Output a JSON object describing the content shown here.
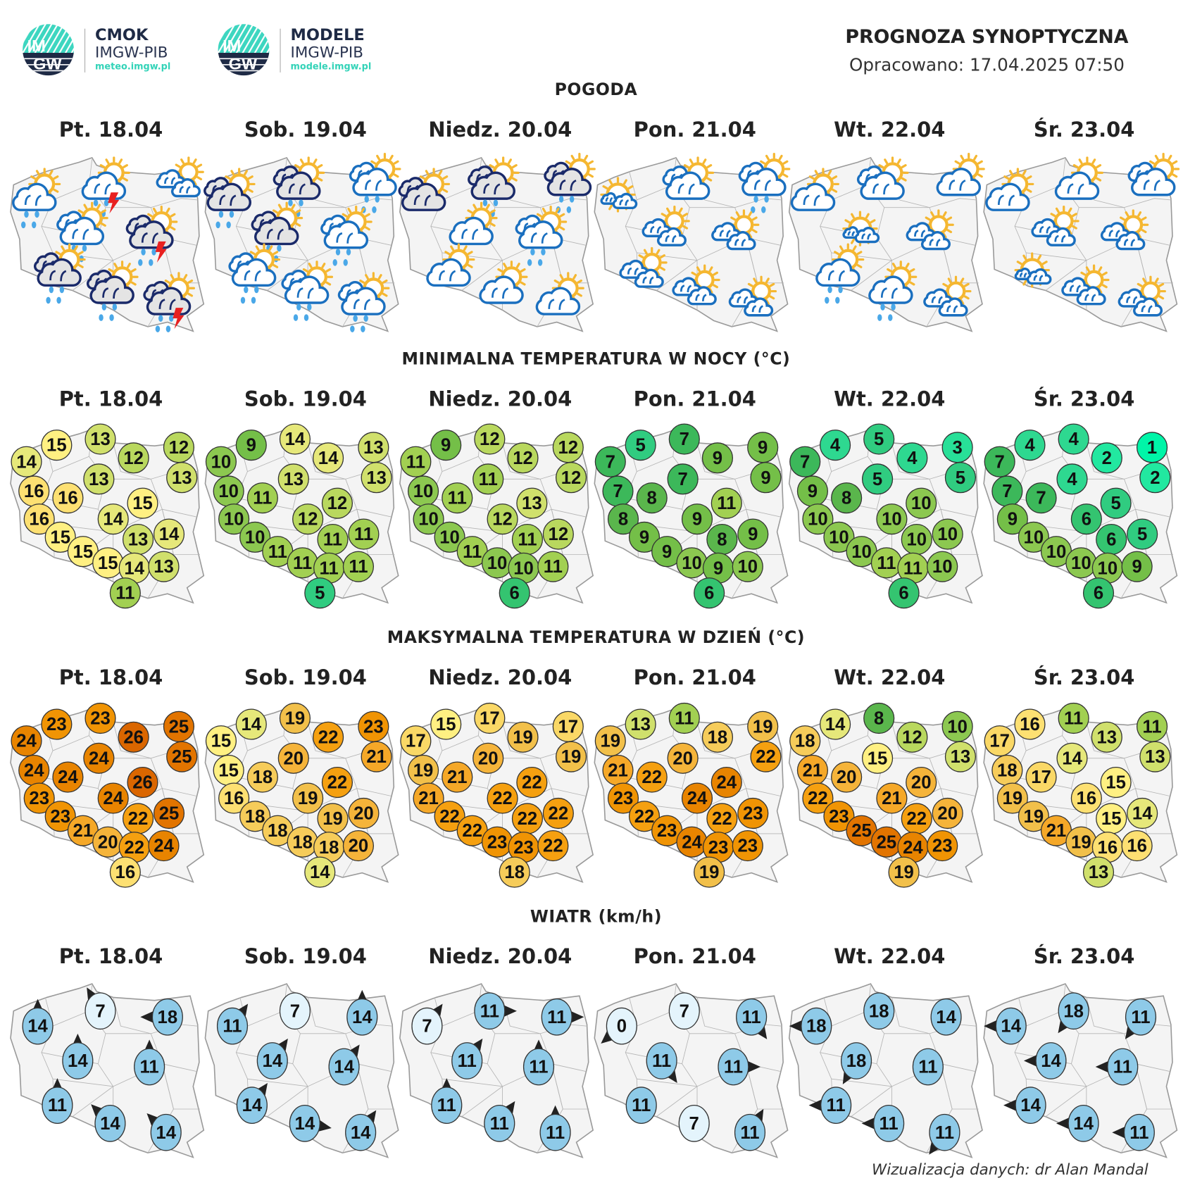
{
  "header": {
    "logo_left": {
      "mark_top": "IM",
      "mark_bottom": "GW",
      "name": "CMOK",
      "org": "IMGW-PIB",
      "url": "meteo.imgw.pl"
    },
    "logo_right": {
      "mark_top": "IM",
      "mark_bottom": "GW",
      "name": "MODELE",
      "org": "IMGW-PIB",
      "url": "modele.imgw.pl"
    },
    "title": "PROGNOZA SYNOPTYCZNA",
    "issued": "Opracowano: 17.04.2025 07:50"
  },
  "days": [
    "Pt. 18.04",
    "Sob. 19.04",
    "Niedz. 20.04",
    "Pon. 21.04",
    "Wt. 22.04",
    "Śr. 23.04"
  ],
  "weather": {
    "title": "POGODA",
    "maps": [
      [
        "partly-cloudy-rain",
        "partly-cloudy-rain-storm",
        "two-clouds-sun",
        "double-cloud-sun-rain",
        "overcast-rain-storm",
        "overcast-rain",
        "overcast-rain",
        "overcast-rain-storm"
      ],
      [
        "overcast-rain",
        "overcast-rain",
        "double-cloud-sun-rain",
        "overcast-rain",
        "double-cloud-sun-rain",
        "double-cloud-sun-rain",
        "double-cloud-sun-rain",
        "double-cloud-sun-rain"
      ],
      [
        "overcast",
        "overcast-rain",
        "overcast-rain",
        "partly-cloudy",
        "double-cloud-sun-rain",
        "partly-cloudy",
        "partly-cloudy",
        "partly-cloudy"
      ],
      [
        "sunny-small-clouds",
        "double-cloud-sun",
        "double-cloud-sun-rain",
        "two-clouds-sun",
        "two-clouds-sun",
        "two-clouds-sun",
        "two-clouds-sun",
        "two-clouds-sun"
      ],
      [
        "partly-cloudy",
        "double-cloud-sun",
        "partly-cloudy",
        "sunny-small-clouds",
        "two-clouds-sun",
        "partly-cloudy-rain",
        "partly-cloudy-rain",
        "two-clouds-sun"
      ],
      [
        "partly-cloudy",
        "partly-cloudy",
        "double-cloud-sun",
        "two-clouds-sun",
        "two-clouds-sun",
        "sunny-small-clouds",
        "two-clouds-sun",
        "two-clouds-sun"
      ]
    ]
  },
  "tmin": {
    "title": "MINIMALNA TEMPERATURA W NOCY (°C)",
    "maps": [
      [
        14,
        15,
        13,
        12,
        12,
        13,
        13,
        16,
        16,
        15,
        16,
        14,
        15,
        13,
        14,
        15,
        15,
        14,
        13,
        11
      ],
      [
        10,
        9,
        14,
        14,
        13,
        13,
        13,
        10,
        11,
        12,
        10,
        12,
        10,
        11,
        11,
        11,
        11,
        11,
        11,
        5
      ],
      [
        11,
        9,
        12,
        12,
        12,
        12,
        11,
        10,
        11,
        13,
        10,
        12,
        10,
        11,
        12,
        11,
        10,
        10,
        11,
        6
      ],
      [
        7,
        5,
        7,
        9,
        9,
        9,
        7,
        7,
        8,
        11,
        8,
        9,
        9,
        8,
        9,
        9,
        10,
        9,
        10,
        6
      ],
      [
        7,
        4,
        5,
        4,
        3,
        5,
        5,
        9,
        8,
        10,
        10,
        10,
        10,
        10,
        10,
        10,
        11,
        11,
        10,
        6
      ],
      [
        7,
        4,
        4,
        2,
        1,
        2,
        4,
        7,
        7,
        5,
        9,
        6,
        10,
        6,
        5,
        10,
        10,
        10,
        9,
        6
      ]
    ]
  },
  "tmax": {
    "title": "MAKSYMALNA TEMPERATURA W DZIEŃ (°C)",
    "maps": [
      [
        24,
        23,
        23,
        26,
        25,
        25,
        24,
        24,
        24,
        26,
        23,
        24,
        23,
        22,
        25,
        21,
        20,
        22,
        24,
        16
      ],
      [
        15,
        14,
        19,
        22,
        23,
        21,
        20,
        15,
        18,
        22,
        16,
        19,
        18,
        19,
        20,
        18,
        18,
        18,
        20,
        14
      ],
      [
        17,
        15,
        17,
        19,
        17,
        19,
        20,
        19,
        21,
        22,
        21,
        22,
        22,
        22,
        22,
        22,
        23,
        23,
        22,
        18
      ],
      [
        19,
        13,
        11,
        18,
        19,
        22,
        20,
        21,
        22,
        24,
        23,
        24,
        22,
        22,
        23,
        23,
        24,
        23,
        23,
        19
      ],
      [
        18,
        14,
        8,
        12,
        10,
        13,
        15,
        21,
        20,
        20,
        22,
        21,
        23,
        22,
        20,
        25,
        25,
        24,
        23,
        19
      ],
      [
        17,
        16,
        11,
        13,
        11,
        13,
        14,
        18,
        17,
        15,
        19,
        16,
        19,
        15,
        14,
        21,
        19,
        16,
        16,
        13
      ]
    ]
  },
  "wind": {
    "title": "WIATR (km/h)",
    "maps": [
      [
        {
          "speed": 14,
          "dir": 0
        },
        {
          "speed": 7,
          "dir": 330
        },
        {
          "speed": 18,
          "dir": 270
        },
        {
          "speed": 14,
          "dir": 0
        },
        {
          "speed": 11,
          "dir": 0
        },
        {
          "speed": 11,
          "dir": 0
        },
        {
          "speed": 14,
          "dir": 315
        },
        {
          "speed": 14,
          "dir": 315
        }
      ],
      [
        {
          "speed": 11,
          "dir": 35
        },
        {
          "speed": 7,
          "dir": null
        },
        {
          "speed": 14,
          "dir": 0
        },
        {
          "speed": 14,
          "dir": 35
        },
        {
          "speed": 14,
          "dir": 35
        },
        {
          "speed": 14,
          "dir": 35
        },
        {
          "speed": 14,
          "dir": 100
        },
        {
          "speed": 14,
          "dir": 35
        }
      ],
      [
        {
          "speed": 7,
          "dir": 35
        },
        {
          "speed": 11,
          "dir": 90
        },
        {
          "speed": 11,
          "dir": 90
        },
        {
          "speed": 11,
          "dir": 35
        },
        {
          "speed": 11,
          "dir": 0
        },
        {
          "speed": 11,
          "dir": 0
        },
        {
          "speed": 11,
          "dir": 35
        },
        {
          "speed": 11,
          "dir": 0
        }
      ],
      [
        {
          "speed": 0,
          "dir": 230
        },
        {
          "speed": 7,
          "dir": null
        },
        {
          "speed": 11,
          "dir": 145
        },
        {
          "speed": 11,
          "dir": 145
        },
        {
          "speed": 11,
          "dir": 90
        },
        {
          "speed": 11,
          "dir": null
        },
        {
          "speed": 7,
          "dir": null
        },
        {
          "speed": 11,
          "dir": 30
        }
      ],
      [
        {
          "speed": 18,
          "dir": 270
        },
        {
          "speed": 18,
          "dir": null
        },
        {
          "speed": 14,
          "dir": null
        },
        {
          "speed": 18,
          "dir": 210
        },
        {
          "speed": 11,
          "dir": null
        },
        {
          "speed": 11,
          "dir": 270
        },
        {
          "speed": 11,
          "dir": 270
        },
        {
          "speed": 11,
          "dir": 215
        }
      ],
      [
        {
          "speed": 14,
          "dir": 270
        },
        {
          "speed": 18,
          "dir": 215
        },
        {
          "speed": 11,
          "dir": 215
        },
        {
          "speed": 14,
          "dir": 270
        },
        {
          "speed": 11,
          "dir": 270
        },
        {
          "speed": 14,
          "dir": 270
        },
        {
          "speed": 14,
          "dir": 270
        },
        {
          "speed": 11,
          "dir": 270
        }
      ]
    ]
  },
  "colors": {
    "temp_scale": {
      "1": "#00f5a8",
      "2": "#22e8a0",
      "3": "#28e098",
      "4": "#2ed890",
      "5": "#30cc80",
      "6": "#34c470",
      "7": "#3cb85a",
      "8": "#5ab64c",
      "9": "#74bf48",
      "10": "#8cc850",
      "11": "#a2d052",
      "12": "#b9d85e",
      "13": "#d0e06c",
      "14": "#e6e87a",
      "15": "#fff082",
      "16": "#fde072",
      "17": "#fad866",
      "18": "#f6cc5a",
      "19": "#f2c04a",
      "20": "#f5b43a",
      "21": "#f5a828",
      "22": "#f5a010",
      "23": "#f09404",
      "24": "#e88400",
      "25": "#e27400",
      "26": "#da6600"
    },
    "wind_calm": "#e4f4fc",
    "wind_moderate": "#8ecae8",
    "sun": "#f5b731",
    "cloud_outline": "#1a6fbf",
    "overcast_outline": "#1a2a6a",
    "rain": "#4aa8e8",
    "storm": "#e82020",
    "brand_teal": "#33d3b8",
    "brand_navy": "#1e2a45"
  },
  "footer": "Wizualizacja danych: dr Alan Mandal"
}
